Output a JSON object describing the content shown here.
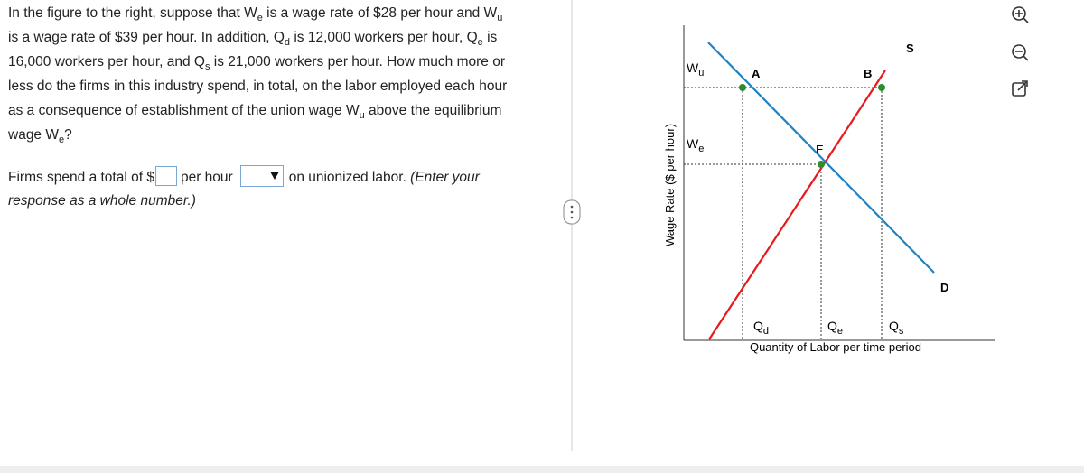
{
  "question": [
    [
      "In the figure to the right, suppose that W",
      "e",
      " is a wage rate of $28 per hour and W",
      "u"
    ],
    [
      "is a wage rate of $39 per hour. In addition, Q",
      "d",
      " is 12,000 workers per hour, Q",
      "e",
      " is"
    ],
    [
      "16,000 workers per hour, and Q",
      "s",
      " is 21,000 workers per hour. How much more or"
    ],
    [
      "less do the firms in this industry spend, in total, on the labor employed each hour"
    ],
    [
      "as a consequence of establishment of the union wage W",
      "u",
      " above the equilibrium"
    ],
    [
      "wage W",
      "e",
      "?"
    ]
  ],
  "answer": {
    "before": "Firms spend a total of $",
    "middle": "per hour",
    "after": "on unionized labor.",
    "hint": "(Enter your response as a whole number.)"
  },
  "figure": {
    "y_axis_label": "Wage Rate ($ per hour)",
    "x_axis_label": "Quantity of Labor per time period",
    "labels": [
      {
        "main": "W",
        "sub": "u"
      },
      {
        "main": "W",
        "sub": "e"
      },
      {
        "main": "A"
      },
      {
        "main": "B"
      },
      {
        "main": "E"
      },
      {
        "main": "S"
      },
      {
        "main": "D"
      },
      {
        "main": "Q",
        "sub": "d"
      },
      {
        "main": "Q",
        "sub": "e"
      },
      {
        "main": "Q",
        "sub": "s"
      }
    ]
  }
}
